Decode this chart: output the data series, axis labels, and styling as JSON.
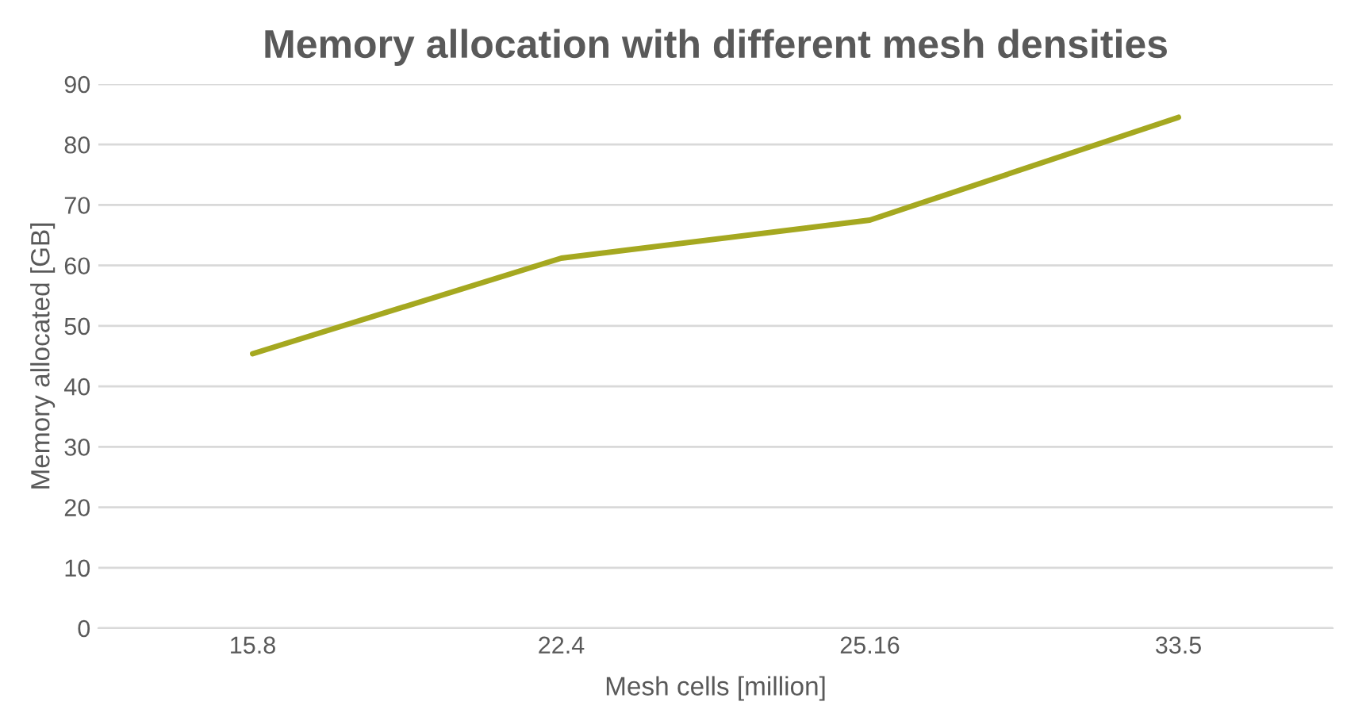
{
  "chart_data": {
    "type": "line",
    "title": "Memory allocation with different mesh densities",
    "xlabel": "Mesh cells [million]",
    "ylabel": "Memory allocated [GB]",
    "categories": [
      "15.8",
      "22.4",
      "25.16",
      "33.5"
    ],
    "series": [
      {
        "color": "#a5a820",
        "values": [
          45.4,
          61.2,
          67.5,
          84.5
        ]
      }
    ],
    "ylim": [
      0,
      90
    ],
    "yticks": [
      0,
      10,
      20,
      30,
      40,
      50,
      60,
      70,
      80,
      90
    ],
    "grid": "y",
    "legend": false,
    "marker": "none",
    "line_style": "solid"
  }
}
